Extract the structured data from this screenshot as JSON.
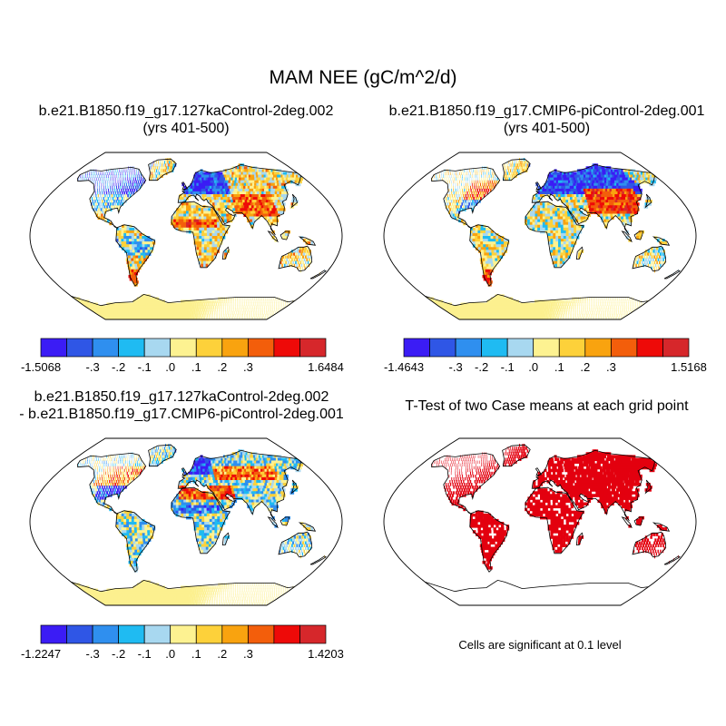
{
  "main_title": "MAM NEE (gC/m^2/d)",
  "panels": [
    {
      "id": "p1",
      "title_line1": "b.e21.B1850.f19_g17.127kaControl-2deg.002",
      "title_line2": "(yrs 401-500)",
      "min_label": "-1.5068",
      "max_label": "1.6484"
    },
    {
      "id": "p2",
      "title_line1": "b.e21.B1850.f19_g17.CMIP6-piControl-2deg.001",
      "title_line2": "(yrs 401-500)",
      "min_label": "-1.4643",
      "max_label": "1.5168"
    },
    {
      "id": "p3",
      "title_line1": "b.e21.B1850.f19_g17.127kaControl-2deg.002",
      "title_line2": "- b.e21.B1850.f19_g17.CMIP6-piControl-2deg.001",
      "min_label": "-1.2247",
      "max_label": "1.4203"
    },
    {
      "id": "p4",
      "title_line1": "T-Test of two Case means at each grid point",
      "note": "Cells are significant at 0.1 level"
    }
  ],
  "colorbar": {
    "colors": [
      "#3b1cf5",
      "#2f56e6",
      "#2f8fef",
      "#1fbbf2",
      "#a8d8f0",
      "#fdf291",
      "#fdd13a",
      "#f9a30f",
      "#f35e0b",
      "#ee0a08",
      "#d6272b"
    ],
    "tick_labels": [
      "-.3",
      "-.2",
      "-.1",
      ".0",
      ".1",
      ".2",
      ".3"
    ]
  },
  "colors": {
    "significant": "#e3000f",
    "ice": "#fcf08f",
    "coast": "#000000"
  }
}
